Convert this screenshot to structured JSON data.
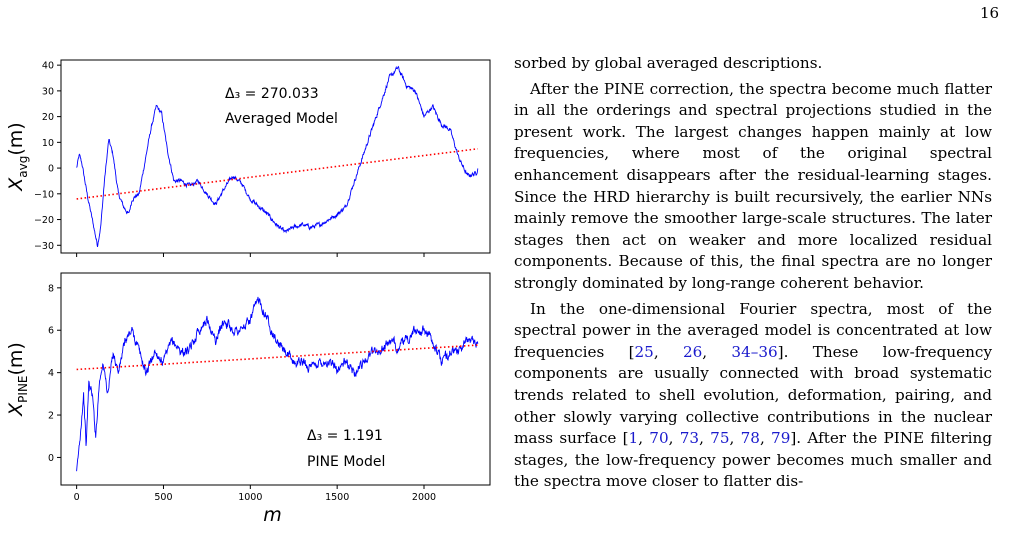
{
  "page_number": "16",
  "paragraphs": [
    {
      "indent": false,
      "parts": [
        {
          "t": "sorbed by global averaged descriptions."
        }
      ]
    },
    {
      "indent": true,
      "parts": [
        {
          "t": "After the PINE correction, the spectra become much flatter in all the orderings and spectral projections studied in the present work. The largest changes happen mainly at low frequencies, where most of the original spectral enhancement disappears after the residual-learning stages. Since the HRD hierarchy is built recursively, the earlier NNs mainly remove the smoother large-scale structures. The later stages then act on weaker and more localized residual components. Because of this, the final spectra are no longer strongly dominated by long-range coherent behavior."
        }
      ]
    },
    {
      "indent": true,
      "parts": [
        {
          "t": "In the one-dimensional Fourier spectra, most of the spectral power in the averaged model is concentrated at low frequencies ["
        },
        {
          "t": "25",
          "c": true
        },
        {
          "t": ", "
        },
        {
          "t": "26",
          "c": true
        },
        {
          "t": ", "
        },
        {
          "t": "34–36",
          "c": true
        },
        {
          "t": "]. These low-frequency components are usually connected with broad systematic trends related to shell evolution, deformation, pairing, and other slowly varying collective contributions in the nuclear mass surface ["
        },
        {
          "t": "1",
          "c": true
        },
        {
          "t": ", "
        },
        {
          "t": "70",
          "c": true
        },
        {
          "t": ", "
        },
        {
          "t": "73",
          "c": true
        },
        {
          "t": ", "
        },
        {
          "t": "75",
          "c": true
        },
        {
          "t": ", "
        },
        {
          "t": "78",
          "c": true
        },
        {
          "t": ", "
        },
        {
          "t": "79",
          "c": true
        },
        {
          "t": "]. After the PINE filtering stages, the low-frequency power becomes much smaller and the spectra move closer to flatter dis-"
        }
      ]
    }
  ],
  "colors": {
    "series": "#0000ff",
    "trend": "#ff0000",
    "link": "#1a1acc"
  },
  "chart_data": [
    {
      "type": "line",
      "ylabel_main": "X",
      "ylabel_sub": "avg",
      "ylabel_tail": "(m)",
      "xlabel": "",
      "xlim": [
        -90,
        2380
      ],
      "ylim": [
        -33,
        42
      ],
      "yticks": [
        -30,
        -20,
        -10,
        0,
        10,
        20,
        30,
        40
      ],
      "ytick_labels": [
        "−30",
        "−20",
        "−10",
        "0",
        "10",
        "20",
        "30",
        "40"
      ],
      "annotation_delta": "Δ₃ = 270.033",
      "annotation_model": "Averaged Model",
      "trend": {
        "x": [
          0,
          2310
        ],
        "y": [
          -12,
          7.5
        ]
      },
      "control_points": [
        [
          0,
          0
        ],
        [
          15,
          5
        ],
        [
          30,
          2
        ],
        [
          60,
          -10
        ],
        [
          90,
          -20
        ],
        [
          120,
          -30
        ],
        [
          140,
          -22
        ],
        [
          160,
          -5
        ],
        [
          185,
          11
        ],
        [
          210,
          5
        ],
        [
          240,
          -10
        ],
        [
          270,
          -15
        ],
        [
          300,
          -18
        ],
        [
          320,
          -12
        ],
        [
          360,
          -10
        ],
        [
          400,
          5
        ],
        [
          430,
          16
        ],
        [
          460,
          24
        ],
        [
          490,
          21
        ],
        [
          520,
          8
        ],
        [
          560,
          -5
        ],
        [
          600,
          -5
        ],
        [
          650,
          -7
        ],
        [
          700,
          -5
        ],
        [
          750,
          -10
        ],
        [
          800,
          -14
        ],
        [
          850,
          -8
        ],
        [
          900,
          -3
        ],
        [
          950,
          -6
        ],
        [
          1000,
          -12
        ],
        [
          1050,
          -15
        ],
        [
          1100,
          -18
        ],
        [
          1150,
          -22
        ],
        [
          1200,
          -25
        ],
        [
          1250,
          -23
        ],
        [
          1300,
          -22
        ],
        [
          1350,
          -23
        ],
        [
          1400,
          -22
        ],
        [
          1450,
          -20
        ],
        [
          1500,
          -18
        ],
        [
          1550,
          -15
        ],
        [
          1600,
          -5
        ],
        [
          1650,
          5
        ],
        [
          1700,
          15
        ],
        [
          1750,
          25
        ],
        [
          1800,
          35
        ],
        [
          1850,
          39
        ],
        [
          1900,
          32
        ],
        [
          1950,
          30
        ],
        [
          2000,
          20
        ],
        [
          2050,
          24
        ],
        [
          2100,
          17
        ],
        [
          2150,
          15
        ],
        [
          2200,
          4
        ],
        [
          2250,
          -3
        ],
        [
          2300,
          -2
        ],
        [
          2310,
          0
        ]
      ],
      "noise": 1.3
    },
    {
      "type": "line",
      "ylabel_main": "X",
      "ylabel_sub": "PINE",
      "ylabel_tail": "(m)",
      "xlabel": "m",
      "xlim": [
        -90,
        2380
      ],
      "ylim": [
        -1.3,
        8.7
      ],
      "xticks": [
        0,
        500,
        1000,
        1500,
        2000
      ],
      "yticks": [
        0,
        2,
        4,
        6,
        8
      ],
      "ytick_labels": [
        "0",
        "2",
        "4",
        "6",
        "8"
      ],
      "annotation_delta": "Δ₃ = 1.191",
      "annotation_model": "PINE Model",
      "trend": {
        "x": [
          0,
          2310
        ],
        "y": [
          4.15,
          5.3
        ]
      },
      "control_points": [
        [
          0,
          -0.8
        ],
        [
          20,
          1
        ],
        [
          40,
          3
        ],
        [
          55,
          0.5
        ],
        [
          70,
          3.5
        ],
        [
          90,
          3
        ],
        [
          110,
          1
        ],
        [
          130,
          3.5
        ],
        [
          150,
          4.5
        ],
        [
          180,
          3
        ],
        [
          210,
          5
        ],
        [
          240,
          4
        ],
        [
          280,
          5.5
        ],
        [
          320,
          6
        ],
        [
          360,
          5
        ],
        [
          400,
          4
        ],
        [
          450,
          5
        ],
        [
          500,
          4.5
        ],
        [
          550,
          5.5
        ],
        [
          600,
          5
        ],
        [
          650,
          5
        ],
        [
          700,
          6
        ],
        [
          750,
          6.5
        ],
        [
          800,
          5.5
        ],
        [
          850,
          6.5
        ],
        [
          900,
          6
        ],
        [
          950,
          6
        ],
        [
          1000,
          6.5
        ],
        [
          1050,
          7.5
        ],
        [
          1100,
          6.5
        ],
        [
          1150,
          5.5
        ],
        [
          1200,
          5
        ],
        [
          1250,
          4.5
        ],
        [
          1300,
          4.5
        ],
        [
          1350,
          4.2
        ],
        [
          1400,
          4.5
        ],
        [
          1450,
          4.5
        ],
        [
          1500,
          4.2
        ],
        [
          1550,
          4.5
        ],
        [
          1600,
          4
        ],
        [
          1650,
          4.5
        ],
        [
          1700,
          5
        ],
        [
          1750,
          5
        ],
        [
          1800,
          5.5
        ],
        [
          1850,
          5.2
        ],
        [
          1900,
          5.5
        ],
        [
          1950,
          6
        ],
        [
          2000,
          6
        ],
        [
          2050,
          5.5
        ],
        [
          2100,
          4.5
        ],
        [
          2150,
          5
        ],
        [
          2200,
          5
        ],
        [
          2250,
          5.5
        ],
        [
          2300,
          5.5
        ],
        [
          2310,
          5.5
        ]
      ],
      "noise": 0.35
    }
  ]
}
